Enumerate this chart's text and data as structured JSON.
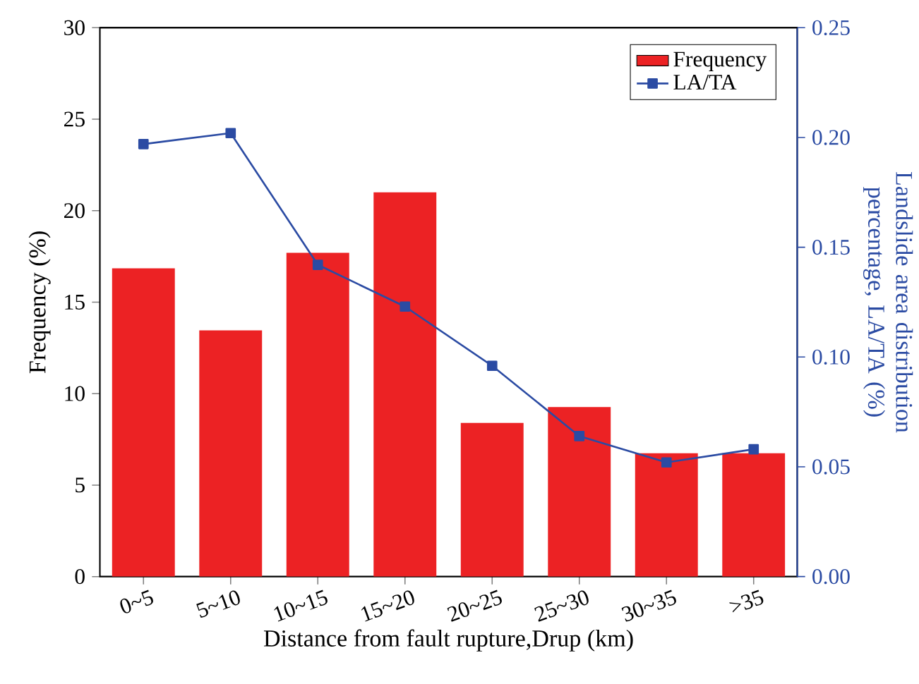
{
  "chart_data": {
    "type": "bar",
    "categories": [
      "0~5",
      "5~10",
      "10~15",
      "15~20",
      "20~25",
      "25~30",
      "30~35",
      ">35"
    ],
    "xlabel": "Distance from fault rupture,Drup (km)",
    "ylabel": "Frequency (%)",
    "y2label": "Landslide area distribution percentage, LA/TA (%)",
    "ylim": [
      0,
      30
    ],
    "yticks": [
      0,
      5,
      10,
      15,
      20,
      25,
      30
    ],
    "y2lim": [
      0,
      0.25
    ],
    "y2ticks": [
      {
        "value": 0,
        "label": "0.00"
      },
      {
        "value": 0.05,
        "label": "0.05"
      },
      {
        "value": 0.1,
        "label": "0.10"
      },
      {
        "value": 0.15,
        "label": "0.15"
      },
      {
        "value": 0.2,
        "label": "0.20"
      },
      {
        "value": 0.25,
        "label": "0.25"
      }
    ],
    "series": [
      {
        "name": "Frequency",
        "color": "#ec2224",
        "values": [
          16.85,
          13.46,
          17.7,
          21.0,
          8.4,
          9.27,
          6.74,
          6.74
        ]
      },
      {
        "name": "LA/TA",
        "type": "line",
        "axis": "y2",
        "color": "#2b4ba3",
        "marker": "square",
        "values": [
          0.197,
          0.202,
          0.142,
          0.123,
          0.096,
          0.064,
          0.052,
          0.058
        ]
      }
    ],
    "legend": "top right"
  }
}
